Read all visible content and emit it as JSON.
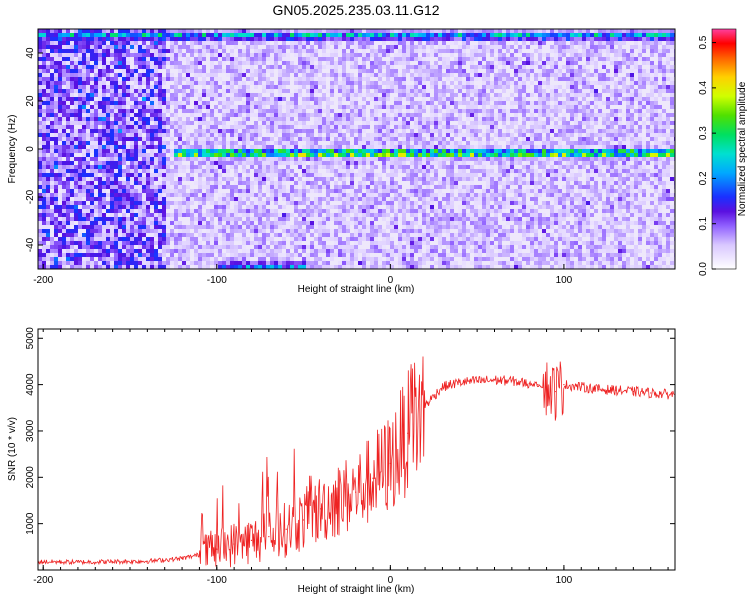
{
  "title": "GN05.2025.235.03.11.G12",
  "chart_data": [
    {
      "type": "heatmap",
      "xlabel": "Height of straight line (km)",
      "ylabel": "Frequency (Hz)",
      "xlim": [
        -203,
        164
      ],
      "ylim": [
        -50,
        50
      ],
      "xticks": [
        -200,
        -100,
        0,
        100
      ],
      "yticks": [
        -40,
        -20,
        0,
        20,
        40
      ],
      "colorbar": {
        "label": "Normalized spectral amplitude",
        "range": [
          0,
          0.53
        ],
        "ticks": [
          0.0,
          0.1,
          0.2,
          0.3,
          0.4,
          0.5
        ]
      },
      "bands": [
        {
          "center_freq": -1,
          "x_start": -125,
          "x_end": 164,
          "peak_amplitude": 0.45
        },
        {
          "center_freq": 48,
          "x_start": -203,
          "x_end": 164,
          "peak_amplitude": 0.3
        },
        {
          "center_freq": -48,
          "x_start": -100,
          "x_end": -50,
          "peak_amplitude": 0.25
        }
      ]
    },
    {
      "type": "line",
      "xlabel": "Height of straight line (km)",
      "ylabel": "SNR (10 * v/v)",
      "xlim": [
        -203,
        164
      ],
      "ylim": [
        0,
        5200
      ],
      "xticks": [
        -200,
        -100,
        0,
        100
      ],
      "yticks": [
        1000,
        2000,
        3000,
        4000,
        5000
      ],
      "series": [
        {
          "color": "#ee2222",
          "x": [
            -203,
            -180,
            -160,
            -140,
            -120,
            -110,
            -100,
            -90,
            -80,
            -70,
            -60,
            -50,
            -40,
            -30,
            -20,
            -10,
            0,
            10,
            20,
            30,
            40,
            50,
            60,
            70,
            80,
            85,
            90,
            95,
            100,
            110,
            120,
            130,
            140,
            150,
            164
          ],
          "y": [
            180,
            170,
            180,
            190,
            250,
            330,
            450,
            560,
            640,
            720,
            880,
            1080,
            1320,
            1520,
            1680,
            1980,
            2300,
            2950,
            3550,
            3950,
            4050,
            4080,
            4100,
            4080,
            4020,
            4000,
            3950,
            3850,
            4000,
            3950,
            3900,
            3880,
            3850,
            3820,
            3780
          ]
        }
      ]
    }
  ]
}
